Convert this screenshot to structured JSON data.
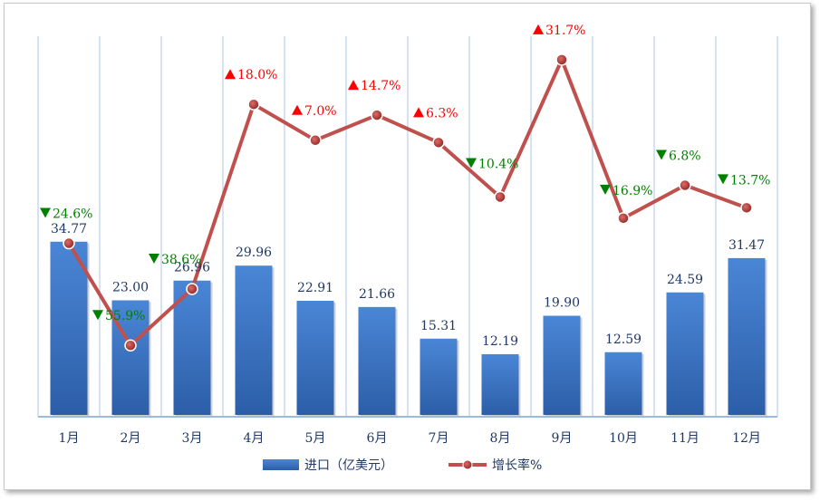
{
  "chart_data": {
    "type": "bar",
    "categories": [
      "1月",
      "2月",
      "3月",
      "4月",
      "5月",
      "6月",
      "7月",
      "8月",
      "9月",
      "10月",
      "11月",
      "12月"
    ],
    "series": [
      {
        "name": "进口（亿美元）",
        "type": "bar",
        "values": [
          34.77,
          23.0,
          26.96,
          29.96,
          22.91,
          21.66,
          15.31,
          12.19,
          19.9,
          12.59,
          24.59,
          31.47
        ],
        "labels": [
          "34.77",
          "23.00",
          "26.96",
          "29.96",
          "22.91",
          "21.66",
          "15.31",
          "12.19",
          "19.90",
          "12.59",
          "24.59",
          "31.47"
        ],
        "color": "#3a78c9"
      },
      {
        "name": "增长率%",
        "type": "line",
        "values": [
          -24.6,
          -55.9,
          -38.6,
          18.0,
          7.0,
          14.7,
          6.3,
          -10.4,
          31.7,
          -16.9,
          -6.8,
          -13.7
        ],
        "labels": [
          "24.6%",
          "55.9%",
          "38.6%",
          "18.0%",
          "7.0%",
          "14.7%",
          "6.3%",
          "10.4%",
          "31.7%",
          "16.9%",
          "6.8%",
          "13.7%"
        ],
        "color": "#c0504d"
      }
    ],
    "legend_position": "bottom",
    "grid": "vertical",
    "colors": {
      "up": "#ff0000",
      "down": "#008000",
      "bar": "#3a78c9",
      "line": "#c0504d"
    }
  }
}
